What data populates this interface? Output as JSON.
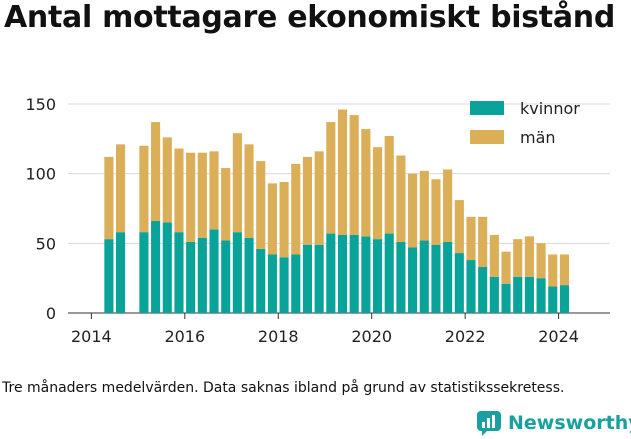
{
  "header": {
    "title": "Antal mottagare ekonomiskt bistånd"
  },
  "footer": {
    "note": "Tre månaders medelvärden. Data saknas ibland på grund av statistikssekretess.",
    "brand": "Newsworthy"
  },
  "colors": {
    "kvinnor": "#0aa39a",
    "man": "#dbae58",
    "grid": "#d9d9d9",
    "brand": "#1aa0a0"
  },
  "chart_data": {
    "type": "bar",
    "stacked": true,
    "title": "Antal mottagare ekonomiskt bistånd",
    "xlim": [
      2013.5,
      2025.1
    ],
    "ylim": [
      0,
      160
    ],
    "x_ticks": [
      2014,
      2016,
      2018,
      2020,
      2022,
      2024
    ],
    "y_ticks": [
      0,
      50,
      100,
      150
    ],
    "grid": "horizontal",
    "legend_position": "top-right",
    "x": [
      2014.375,
      2014.625,
      2015.125,
      2015.375,
      2015.625,
      2015.875,
      2016.125,
      2016.375,
      2016.625,
      2016.875,
      2017.125,
      2017.375,
      2017.625,
      2017.875,
      2018.125,
      2018.375,
      2018.625,
      2018.875,
      2019.125,
      2019.375,
      2019.625,
      2019.875,
      2020.125,
      2020.375,
      2020.625,
      2020.875,
      2021.125,
      2021.375,
      2021.625,
      2021.875,
      2022.125,
      2022.375,
      2022.625,
      2022.875,
      2023.125,
      2023.375,
      2023.625,
      2023.875,
      2024.125
    ],
    "series": [
      {
        "name": "kvinnor",
        "values": [
          53,
          58,
          58,
          66,
          65,
          58,
          51,
          54,
          60,
          52,
          58,
          54,
          46,
          42,
          40,
          42,
          49,
          49,
          57,
          56,
          56,
          55,
          53,
          57,
          51,
          47,
          52,
          49,
          51,
          43,
          38,
          33,
          26,
          21,
          26,
          26,
          25,
          19,
          20
        ]
      },
      {
        "name": "män",
        "values": [
          59,
          63,
          62,
          71,
          61,
          60,
          64,
          61,
          56,
          52,
          71,
          67,
          63,
          51,
          54,
          65,
          63,
          67,
          80,
          90,
          86,
          77,
          66,
          70,
          62,
          53,
          50,
          47,
          52,
          38,
          31,
          36,
          30,
          23,
          27,
          29,
          25,
          23,
          22
        ]
      }
    ]
  }
}
